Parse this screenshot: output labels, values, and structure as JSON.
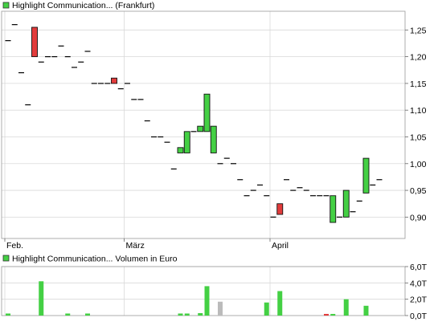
{
  "price_chart": {
    "legend_label": "Highlight Communication... (Frankfurt)",
    "legend_color": "#44d044"
  },
  "volume_chart": {
    "legend_label": "Highlight Communication... Volumen in Euro",
    "legend_color": "#44d044"
  },
  "colors": {
    "up": "#44d044",
    "down": "#e23b3b",
    "flat": "#000000",
    "volume_neutral": "#bbbbbb",
    "grid": "#d9d9d9"
  },
  "chart_data": [
    {
      "type": "candlestick",
      "title": "Highlight Communication... (Frankfurt)",
      "x_tick_labels": [
        "Feb.",
        "März",
        "April"
      ],
      "x_tick_sessions": [
        0,
        18,
        40
      ],
      "y_ticks": [
        0.9,
        0.95,
        1.0,
        1.05,
        1.1,
        1.15,
        1.2,
        1.25
      ],
      "y_tick_labels": [
        "0,90",
        "0,95",
        "1,00",
        "1,05",
        "1,10",
        "1,15",
        "1,20",
        "1,25"
      ],
      "ylim": [
        0.86,
        1.285
      ],
      "grid": true,
      "sessions": 62,
      "candles": [
        {
          "i": 0,
          "o": 1.23,
          "c": 1.23
        },
        {
          "i": 1,
          "o": 1.26,
          "c": 1.26
        },
        {
          "i": 2,
          "o": 1.17,
          "c": 1.17
        },
        {
          "i": 3,
          "o": 1.11,
          "c": 1.11
        },
        {
          "i": 4,
          "o": 1.255,
          "c": 1.2
        },
        {
          "i": 5,
          "o": 1.19,
          "c": 1.19
        },
        {
          "i": 6,
          "o": 1.2,
          "c": 1.2
        },
        {
          "i": 7,
          "o": 1.2,
          "c": 1.2
        },
        {
          "i": 8,
          "o": 1.22,
          "c": 1.22
        },
        {
          "i": 9,
          "o": 1.2,
          "c": 1.2
        },
        {
          "i": 10,
          "o": 1.18,
          "c": 1.18
        },
        {
          "i": 11,
          "o": 1.19,
          "c": 1.19
        },
        {
          "i": 12,
          "o": 1.21,
          "c": 1.21
        },
        {
          "i": 13,
          "o": 1.15,
          "c": 1.15
        },
        {
          "i": 14,
          "o": 1.15,
          "c": 1.15
        },
        {
          "i": 15,
          "o": 1.15,
          "c": 1.15
        },
        {
          "i": 16,
          "o": 1.16,
          "c": 1.15
        },
        {
          "i": 17,
          "o": 1.14,
          "c": 1.14
        },
        {
          "i": 18,
          "o": 1.15,
          "c": 1.15
        },
        {
          "i": 19,
          "o": 1.12,
          "c": 1.12
        },
        {
          "i": 20,
          "o": 1.12,
          "c": 1.12
        },
        {
          "i": 21,
          "o": 1.08,
          "c": 1.08
        },
        {
          "i": 22,
          "o": 1.05,
          "c": 1.05
        },
        {
          "i": 23,
          "o": 1.05,
          "c": 1.05
        },
        {
          "i": 24,
          "o": 1.04,
          "c": 1.04
        },
        {
          "i": 25,
          "o": 0.99,
          "c": 0.99
        },
        {
          "i": 26,
          "o": 1.02,
          "c": 1.03
        },
        {
          "i": 27,
          "o": 1.02,
          "c": 1.06
        },
        {
          "i": 28,
          "o": 1.06,
          "c": 1.06
        },
        {
          "i": 29,
          "o": 1.06,
          "c": 1.07
        },
        {
          "i": 30,
          "o": 1.06,
          "c": 1.13
        },
        {
          "i": 31,
          "o": 1.02,
          "c": 1.07
        },
        {
          "i": 32,
          "o": 1.0,
          "c": 1.0
        },
        {
          "i": 33,
          "o": 1.01,
          "c": 1.01
        },
        {
          "i": 34,
          "o": 1.0,
          "c": 1.0
        },
        {
          "i": 35,
          "o": 0.97,
          "c": 0.97
        },
        {
          "i": 36,
          "o": 0.94,
          "c": 0.94
        },
        {
          "i": 37,
          "o": 0.95,
          "c": 0.95
        },
        {
          "i": 38,
          "o": 0.96,
          "c": 0.96
        },
        {
          "i": 39,
          "o": 0.94,
          "c": 0.94
        },
        {
          "i": 40,
          "o": 0.9,
          "c": 0.9
        },
        {
          "i": 41,
          "o": 0.925,
          "c": 0.905
        },
        {
          "i": 42,
          "o": 0.97,
          "c": 0.97
        },
        {
          "i": 43,
          "o": 0.95,
          "c": 0.95
        },
        {
          "i": 44,
          "o": 0.955,
          "c": 0.955
        },
        {
          "i": 45,
          "o": 0.95,
          "c": 0.95
        },
        {
          "i": 46,
          "o": 0.94,
          "c": 0.94
        },
        {
          "i": 47,
          "o": 0.94,
          "c": 0.94
        },
        {
          "i": 48,
          "o": 0.94,
          "c": 0.94
        },
        {
          "i": 49,
          "o": 0.89,
          "c": 0.94
        },
        {
          "i": 50,
          "o": 0.9,
          "c": 0.9
        },
        {
          "i": 51,
          "o": 0.9,
          "c": 0.95
        },
        {
          "i": 52,
          "o": 0.91,
          "c": 0.91
        },
        {
          "i": 53,
          "o": 0.93,
          "c": 0.93
        },
        {
          "i": 54,
          "o": 0.945,
          "c": 1.01
        },
        {
          "i": 55,
          "o": 0.96,
          "c": 0.96
        },
        {
          "i": 56,
          "o": 0.97,
          "c": 0.97
        }
      ]
    },
    {
      "type": "bar",
      "title": "Highlight Communication... Volumen in Euro",
      "y_ticks": [
        0,
        2,
        4,
        6
      ],
      "y_tick_labels": [
        "0,0T",
        "2,0T",
        "4,0T",
        "6,0T"
      ],
      "ylim": [
        0,
        6
      ],
      "grid": true,
      "bars": [
        {
          "i": 0,
          "v": 0.25,
          "dir": "up"
        },
        {
          "i": 5,
          "v": 4.2,
          "dir": "up"
        },
        {
          "i": 9,
          "v": 0.25,
          "dir": "up"
        },
        {
          "i": 12,
          "v": 0.25,
          "dir": "up"
        },
        {
          "i": 26,
          "v": 0.25,
          "dir": "up"
        },
        {
          "i": 27,
          "v": 0.25,
          "dir": "up"
        },
        {
          "i": 29,
          "v": 0.3,
          "dir": "up"
        },
        {
          "i": 30,
          "v": 3.6,
          "dir": "up"
        },
        {
          "i": 32,
          "v": 1.7,
          "dir": "neutral"
        },
        {
          "i": 39,
          "v": 1.6,
          "dir": "up"
        },
        {
          "i": 41,
          "v": 3.0,
          "dir": "up"
        },
        {
          "i": 48,
          "v": 0.2,
          "dir": "down"
        },
        {
          "i": 49,
          "v": 0.2,
          "dir": "up"
        },
        {
          "i": 51,
          "v": 2.0,
          "dir": "up"
        },
        {
          "i": 54,
          "v": 1.2,
          "dir": "up"
        }
      ]
    }
  ]
}
